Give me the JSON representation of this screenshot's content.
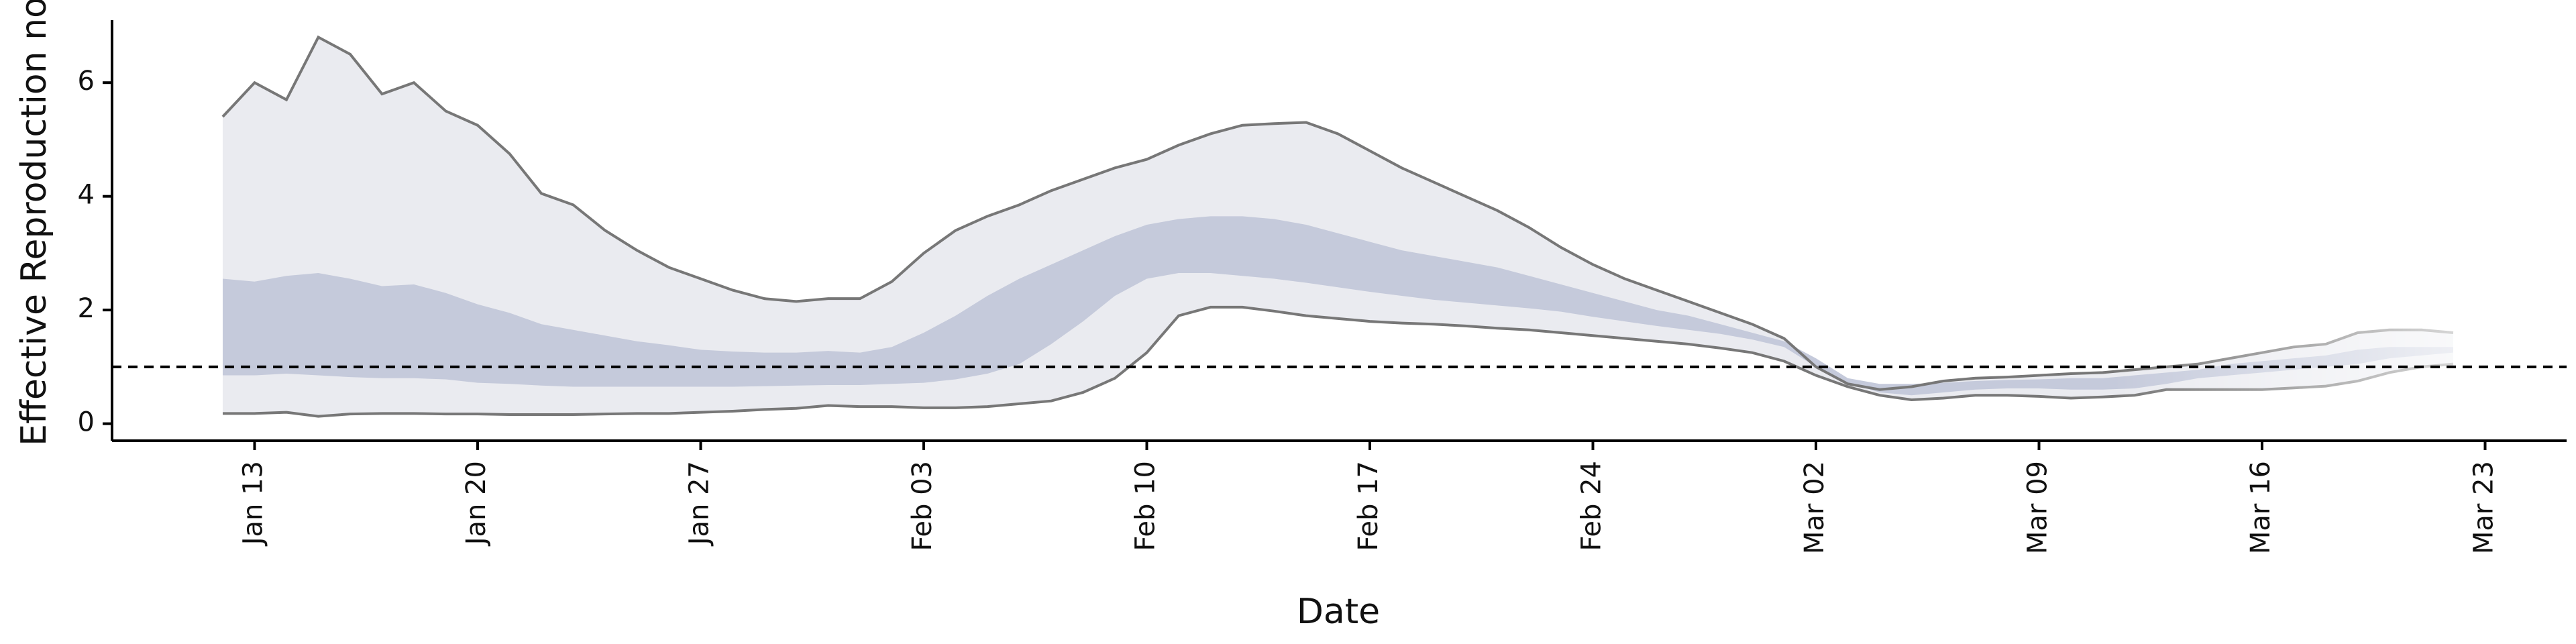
{
  "chart_data": {
    "type": "band",
    "x_label": "Date",
    "y_label": "Effective Reproduction no",
    "x": [
      "Jan 12",
      "Jan 13",
      "Jan 14",
      "Jan 15",
      "Jan 16",
      "Jan 17",
      "Jan 18",
      "Jan 19",
      "Jan 20",
      "Jan 21",
      "Jan 22",
      "Jan 23",
      "Jan 24",
      "Jan 25",
      "Jan 26",
      "Jan 27",
      "Jan 28",
      "Jan 29",
      "Jan 30",
      "Jan 31",
      "Feb 01",
      "Feb 02",
      "Feb 03",
      "Feb 04",
      "Feb 05",
      "Feb 06",
      "Feb 07",
      "Feb 08",
      "Feb 09",
      "Feb 10",
      "Feb 11",
      "Feb 12",
      "Feb 13",
      "Feb 14",
      "Feb 15",
      "Feb 16",
      "Feb 17",
      "Feb 18",
      "Feb 19",
      "Feb 20",
      "Feb 21",
      "Feb 22",
      "Feb 23",
      "Feb 24",
      "Feb 25",
      "Feb 26",
      "Feb 27",
      "Feb 28",
      "Feb 29",
      "Mar 01",
      "Mar 02",
      "Mar 03",
      "Mar 04",
      "Mar 05",
      "Mar 06",
      "Mar 07",
      "Mar 08",
      "Mar 09",
      "Mar 10",
      "Mar 11",
      "Mar 12",
      "Mar 13",
      "Mar 14",
      "Mar 15",
      "Mar 16",
      "Mar 17",
      "Mar 18",
      "Mar 19",
      "Mar 20",
      "Mar 21",
      "Mar 22"
    ],
    "bands": [
      {
        "color": "#eaebf0",
        "line_color": "#777777",
        "upper": [
          5.4,
          6.0,
          5.7,
          6.8,
          6.5,
          5.8,
          6.0,
          5.5,
          5.25,
          4.75,
          4.05,
          3.85,
          3.4,
          3.05,
          2.75,
          2.55,
          2.35,
          2.2,
          2.15,
          2.2,
          2.2,
          2.5,
          3.0,
          3.4,
          3.65,
          3.85,
          4.1,
          4.3,
          4.5,
          4.65,
          4.9,
          5.1,
          5.25,
          5.28,
          5.3,
          5.1,
          4.8,
          4.5,
          4.25,
          4.0,
          3.75,
          3.45,
          3.1,
          2.8,
          2.55,
          2.35,
          2.15,
          1.95,
          1.75,
          1.5,
          1.0,
          0.7,
          0.6,
          0.65,
          0.75,
          0.8,
          0.82,
          0.85,
          0.88,
          0.9,
          0.95,
          1.0,
          1.05,
          1.15,
          1.25,
          1.35,
          1.4,
          1.6,
          1.65,
          1.65,
          1.6
        ],
        "lower": [
          0.18,
          0.18,
          0.2,
          0.13,
          0.17,
          0.18,
          0.18,
          0.17,
          0.17,
          0.16,
          0.16,
          0.16,
          0.17,
          0.18,
          0.18,
          0.2,
          0.22,
          0.25,
          0.27,
          0.32,
          0.3,
          0.3,
          0.28,
          0.28,
          0.3,
          0.35,
          0.4,
          0.55,
          0.8,
          1.25,
          1.9,
          2.05,
          2.05,
          1.98,
          1.9,
          1.85,
          1.8,
          1.77,
          1.75,
          1.72,
          1.68,
          1.65,
          1.6,
          1.55,
          1.5,
          1.45,
          1.4,
          1.33,
          1.25,
          1.1,
          0.85,
          0.65,
          0.5,
          0.42,
          0.45,
          0.5,
          0.5,
          0.48,
          0.45,
          0.47,
          0.5,
          0.6,
          0.6,
          0.6,
          0.6,
          0.63,
          0.66,
          0.75,
          0.9,
          1.0,
          1.05
        ]
      },
      {
        "color": "#c5cadb",
        "upper": [
          2.55,
          2.5,
          2.6,
          2.65,
          2.55,
          2.42,
          2.45,
          2.3,
          2.1,
          1.95,
          1.75,
          1.65,
          1.55,
          1.45,
          1.38,
          1.3,
          1.27,
          1.25,
          1.25,
          1.28,
          1.25,
          1.35,
          1.6,
          1.9,
          2.25,
          2.55,
          2.8,
          3.05,
          3.3,
          3.5,
          3.6,
          3.65,
          3.65,
          3.6,
          3.5,
          3.35,
          3.2,
          3.05,
          2.95,
          2.85,
          2.75,
          2.6,
          2.45,
          2.3,
          2.15,
          2.0,
          1.9,
          1.75,
          1.6,
          1.45,
          1.15,
          0.8,
          0.7,
          0.7,
          0.72,
          0.75,
          0.77,
          0.78,
          0.8,
          0.8,
          0.85,
          0.9,
          0.95,
          1.05,
          1.1,
          1.15,
          1.2,
          1.3,
          1.35,
          1.35,
          1.35
        ],
        "lower": [
          0.85,
          0.85,
          0.88,
          0.85,
          0.82,
          0.8,
          0.8,
          0.78,
          0.72,
          0.7,
          0.67,
          0.65,
          0.65,
          0.65,
          0.65,
          0.65,
          0.65,
          0.66,
          0.67,
          0.68,
          0.68,
          0.7,
          0.72,
          0.78,
          0.88,
          1.05,
          1.4,
          1.8,
          2.25,
          2.55,
          2.65,
          2.65,
          2.6,
          2.55,
          2.48,
          2.4,
          2.32,
          2.25,
          2.18,
          2.13,
          2.08,
          2.03,
          1.97,
          1.88,
          1.8,
          1.72,
          1.65,
          1.58,
          1.48,
          1.35,
          1.0,
          0.72,
          0.55,
          0.5,
          0.55,
          0.6,
          0.62,
          0.62,
          0.6,
          0.6,
          0.62,
          0.7,
          0.8,
          0.85,
          0.9,
          0.95,
          1.0,
          1.05,
          1.15,
          1.2,
          1.25
        ]
      }
    ],
    "hline": 1,
    "ylim": [
      -0.3,
      7.1
    ],
    "yticks": [
      0,
      2,
      4,
      6
    ],
    "xticks": [
      "Jan 13",
      "Jan 20",
      "Jan 27",
      "Feb 03",
      "Feb 10",
      "Feb 17",
      "Feb 24",
      "Mar 02",
      "Mar 09",
      "Mar 16",
      "Mar 23"
    ]
  }
}
